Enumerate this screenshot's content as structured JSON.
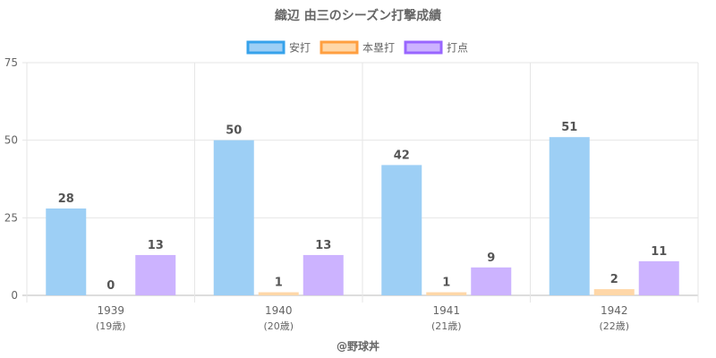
{
  "chart_data": {
    "type": "bar",
    "title": "織辺 由三のシーズン打撃成績",
    "categories": [
      "1939",
      "1940",
      "1941",
      "1942"
    ],
    "category_sublabels": [
      "(19歳)",
      "(20歳)",
      "(21歳)",
      "(22歳)"
    ],
    "series": [
      {
        "name": "安打",
        "values": [
          28,
          50,
          42,
          51
        ],
        "color": "#9dcff5",
        "border": "#36a2eb"
      },
      {
        "name": "本塁打",
        "values": [
          0,
          1,
          1,
          2
        ],
        "color": "#ffd7a8",
        "border": "#ff9f40"
      },
      {
        "name": "打点",
        "values": [
          13,
          13,
          9,
          11
        ],
        "color": "#ccb3ff",
        "border": "#9966ff"
      }
    ],
    "ylim": [
      0,
      75
    ],
    "yticks": [
      "0",
      "25",
      "50",
      "75"
    ],
    "grid": true,
    "legend_position": "top"
  },
  "credit": "@野球丼"
}
